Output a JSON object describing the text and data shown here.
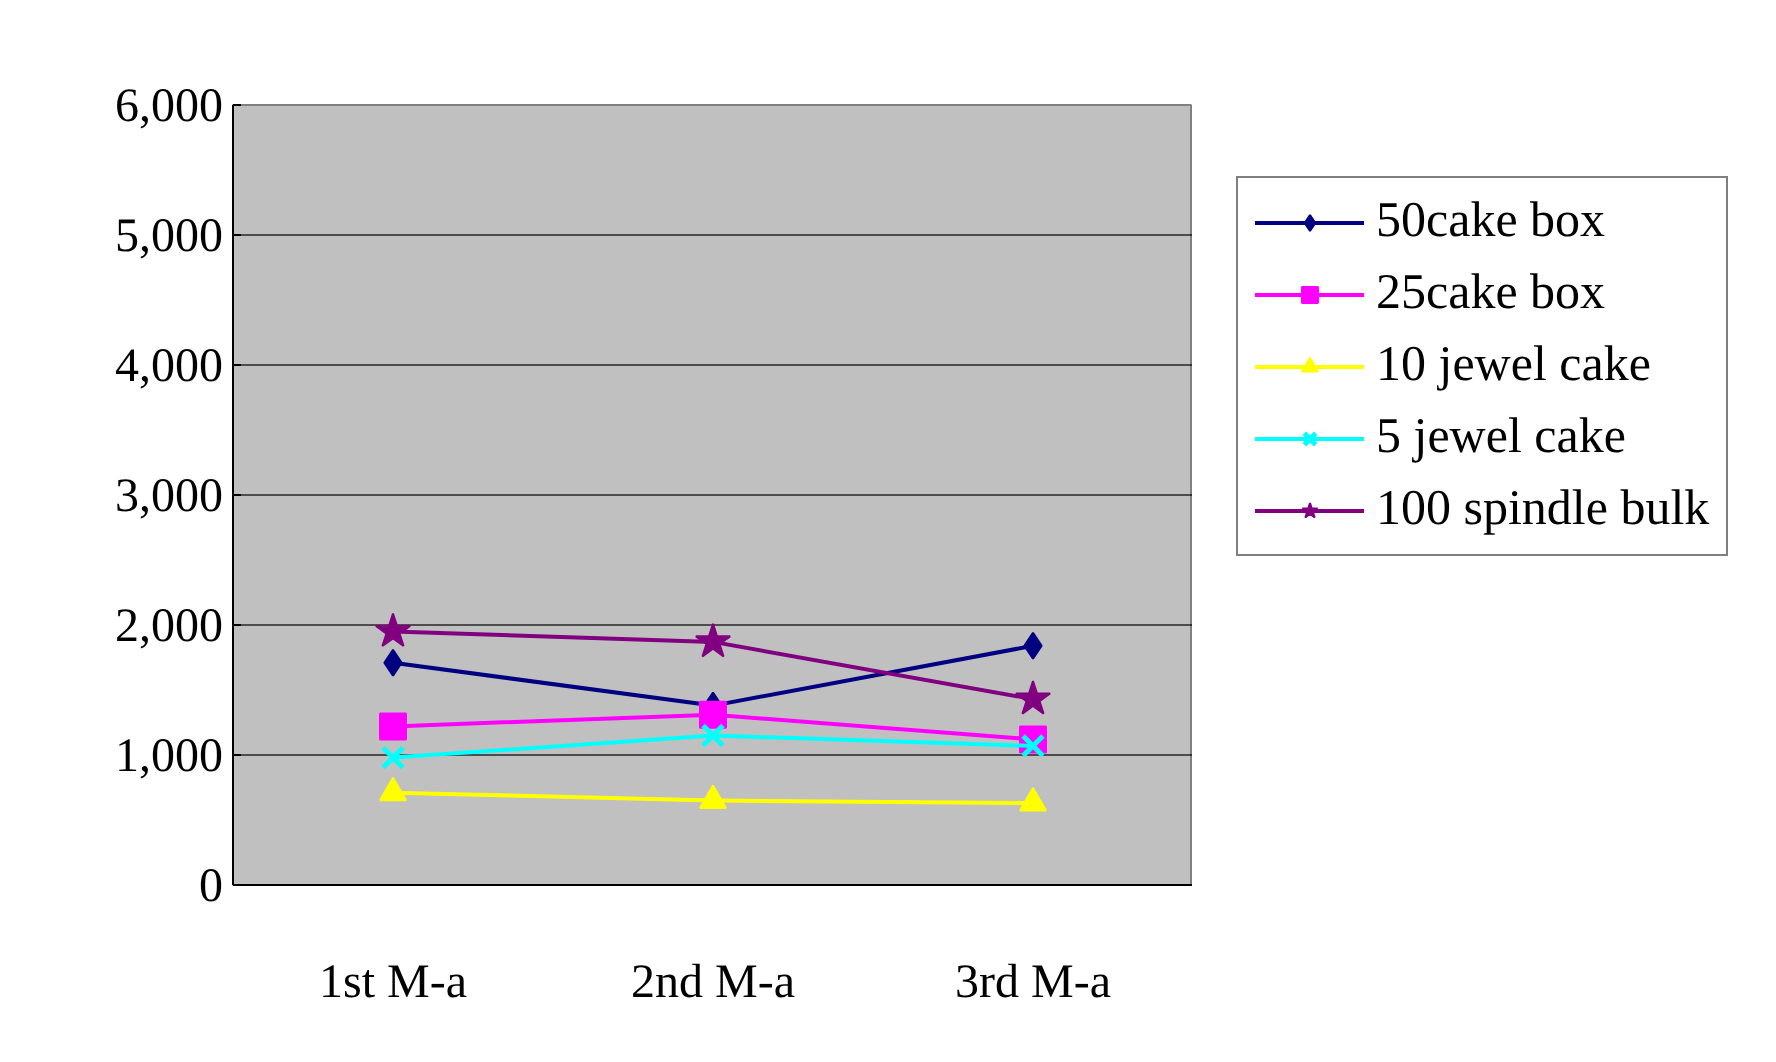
{
  "chart_data": {
    "type": "line",
    "categories": [
      "1st M-a",
      "2nd M-a",
      "3rd M-a"
    ],
    "ylim": [
      0,
      6000
    ],
    "yticks": [
      {
        "value": 0,
        "label": "0"
      },
      {
        "value": 1000,
        "label": "1,000"
      },
      {
        "value": 2000,
        "label": "2,000"
      },
      {
        "value": 3000,
        "label": "3,000"
      },
      {
        "value": 4000,
        "label": "4,000"
      },
      {
        "value": 5000,
        "label": "5,000"
      },
      {
        "value": 6000,
        "label": "6,000"
      }
    ],
    "grid": "y",
    "legend": "right",
    "series": [
      {
        "name": "50cake box",
        "color": "#000080",
        "marker": "diamond",
        "values": [
          1710,
          1380,
          1840
        ]
      },
      {
        "name": "25cake box",
        "color": "#ff00ff",
        "marker": "square",
        "values": [
          1220,
          1310,
          1120
        ]
      },
      {
        "name": "10 jewel cake",
        "color": "#ffff00",
        "marker": "triangle",
        "values": [
          710,
          650,
          630
        ]
      },
      {
        "name": "5 jewel cake",
        "color": "#00ffff",
        "marker": "cross",
        "values": [
          980,
          1150,
          1070
        ]
      },
      {
        "name": "100 spindle bulk",
        "color": "#800080",
        "marker": "star",
        "values": [
          1950,
          1870,
          1430
        ]
      }
    ]
  }
}
